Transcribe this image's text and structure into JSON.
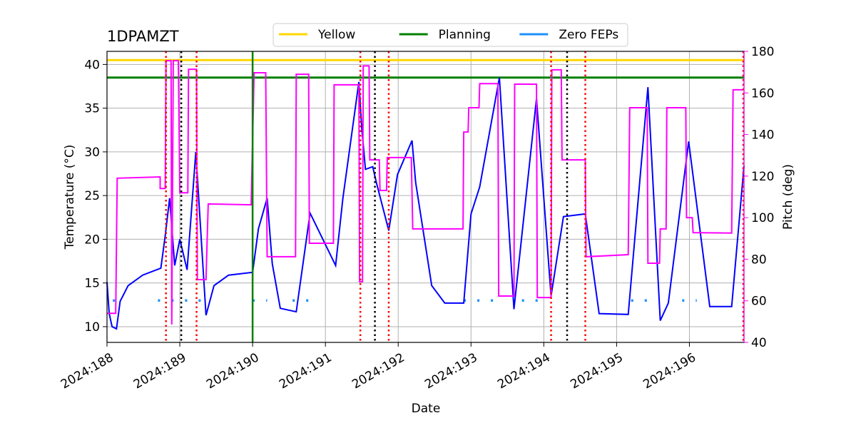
{
  "chart_data": {
    "type": "line",
    "title": "1DPAMZT",
    "xlabel": "Date",
    "ylabel": "Temperature (°C)",
    "y2label": "Pitch (deg)",
    "y2color": "#ff00ff",
    "xlim": [
      188,
      196.75
    ],
    "ylim": [
      8.2,
      41.5
    ],
    "y2lim": [
      40,
      180
    ],
    "xticks": [
      {
        "value": 188,
        "label": "2024:188"
      },
      {
        "value": 189,
        "label": "2024:189"
      },
      {
        "value": 190,
        "label": "2024:190"
      },
      {
        "value": 191,
        "label": "2024:191"
      },
      {
        "value": 192,
        "label": "2024:192"
      },
      {
        "value": 193,
        "label": "2024:193"
      },
      {
        "value": 194,
        "label": "2024:194"
      },
      {
        "value": 195,
        "label": "2024:195"
      },
      {
        "value": 196,
        "label": "2024:196"
      }
    ],
    "yticks": [
      10,
      15,
      20,
      25,
      30,
      35,
      40
    ],
    "y2ticks": [
      40,
      60,
      80,
      100,
      120,
      140,
      160,
      180
    ],
    "grid": true,
    "legend": "top",
    "series": [
      {
        "name": "Yellow",
        "color": "#ffd700",
        "legend": true,
        "x": [
          188,
          196.75
        ],
        "values": [
          40.5,
          40.5
        ]
      },
      {
        "name": "Planning",
        "color": "#008000",
        "legend": true,
        "x": [
          188,
          196.75
        ],
        "values": [
          38.5,
          38.5
        ]
      },
      {
        "name": "Zero FEPs",
        "color": "#1e90ff",
        "legend": true,
        "linestyle": "dotted",
        "x": [
          188.08,
          188.17,
          188.2,
          188.7,
          189.35,
          189.4,
          190.0,
          190.2,
          190.3,
          190.55,
          190.85,
          190.9,
          192.9,
          193.45,
          193.5,
          193.7,
          193.95,
          194.0,
          195.2,
          195.55,
          195.6,
          195.9,
          196.1
        ],
        "values": [
          13,
          13,
          null,
          13,
          13,
          null,
          13,
          13,
          null,
          13,
          13,
          null,
          13,
          13,
          null,
          13,
          13,
          null,
          13,
          13,
          null,
          13,
          13
        ]
      },
      {
        "color": "#0000ff",
        "x": [
          188,
          188.03,
          188.07,
          188.13,
          188.18,
          188.29,
          188.49,
          188.74,
          188.8,
          188.86,
          188.93,
          189.0,
          189.1,
          189.22,
          189.36,
          189.47,
          189.67,
          189.98,
          190.0,
          190.08,
          190.2,
          190.27,
          190.38,
          190.6,
          190.79,
          191.14,
          191.24,
          191.46,
          191.5,
          191.55,
          191.65,
          191.7,
          191.87,
          191.99,
          192.19,
          192.24,
          192.46,
          192.64,
          192.9,
          193.0,
          193.12,
          193.39,
          193.59,
          193.9,
          194.1,
          194.27,
          194.57,
          194.76,
          195.16,
          195.43,
          195.6,
          195.71,
          195.99,
          196.28,
          196.58,
          196.75
        ],
        "values": [
          15.1,
          11.5,
          10.0,
          9.75,
          12.9,
          14.7,
          15.9,
          16.7,
          20.4,
          24.7,
          17.0,
          20.0,
          16.5,
          30.0,
          11.3,
          14.7,
          15.9,
          16.2,
          16.2,
          21.2,
          24.7,
          17.2,
          12.1,
          11.7,
          23.0,
          17.0,
          24.7,
          38.0,
          32.7,
          28.0,
          28.3,
          26.5,
          21.0,
          27.4,
          31.3,
          26.5,
          14.7,
          12.7,
          12.7,
          22.9,
          26.0,
          38.5,
          12.0,
          36.1,
          13.5,
          22.6,
          22.9,
          11.5,
          11.4,
          37.4,
          10.7,
          12.7,
          31.2,
          12.3,
          12.3,
          28.4
        ]
      },
      {
        "color": "#ff00ff",
        "axis": "y2",
        "x": [
          188,
          188.12,
          188.14,
          188.73,
          188.73,
          188.8,
          188.81,
          188.88,
          188.89,
          188.91,
          188.98,
          189.0,
          189.11,
          189.12,
          189.23,
          189.24,
          189.36,
          189.39,
          189.98,
          190.02,
          190.18,
          190.2,
          190.59,
          190.6,
          190.77,
          190.78,
          191.11,
          191.12,
          191.46,
          191.47,
          191.51,
          191.52,
          191.6,
          191.61,
          191.74,
          191.75,
          191.84,
          191.85,
          192.18,
          192.2,
          192.89,
          192.9,
          192.96,
          192.97,
          193.11,
          193.12,
          193.37,
          193.38,
          193.59,
          193.6,
          193.9,
          193.91,
          194.1,
          194.11,
          194.24,
          194.25,
          194.57,
          194.58,
          195.16,
          195.18,
          195.42,
          195.43,
          195.59,
          195.6,
          195.68,
          195.69,
          195.95,
          195.96,
          196.04,
          196.05,
          196.58,
          196.6,
          196.73
        ],
        "values": [
          54,
          54,
          119,
          119.6,
          114,
          114,
          175.5,
          175.5,
          48.6,
          175.5,
          175.5,
          112,
          112,
          171.4,
          171.4,
          70.2,
          70.2,
          106.6,
          106.2,
          169.7,
          169.7,
          81.2,
          81.2,
          169,
          169,
          87.7,
          87.7,
          163.9,
          163.9,
          69.2,
          69.2,
          173,
          173,
          127.8,
          127.8,
          113.1,
          113.1,
          128.9,
          128.9,
          94.6,
          94.6,
          141.2,
          141.2,
          152.9,
          152.9,
          164.5,
          164.5,
          62.3,
          62.3,
          164.2,
          164.2,
          61.6,
          61.6,
          171.1,
          171.1,
          127.8,
          127.8,
          81.2,
          82.2,
          152.9,
          152.9,
          78.1,
          78.1,
          94.6,
          94.6,
          152.9,
          152.9,
          100,
          100,
          92.8,
          92.6,
          161.5,
          161.5
        ]
      }
    ],
    "vlines": [
      {
        "x": 188.81,
        "color": "#ff0000"
      },
      {
        "x": 189.02,
        "color": "#000000"
      },
      {
        "x": 189.23,
        "color": "#ff0000"
      },
      {
        "x": 190.0,
        "color": "#008000",
        "linestyle": "solid"
      },
      {
        "x": 191.48,
        "color": "#ff0000"
      },
      {
        "x": 191.68,
        "color": "#000000"
      },
      {
        "x": 191.87,
        "color": "#ff0000"
      },
      {
        "x": 194.1,
        "color": "#ff0000"
      },
      {
        "x": 194.32,
        "color": "#000000"
      },
      {
        "x": 194.57,
        "color": "#ff0000"
      },
      {
        "x": 196.74,
        "color": "#ff0000"
      }
    ]
  }
}
